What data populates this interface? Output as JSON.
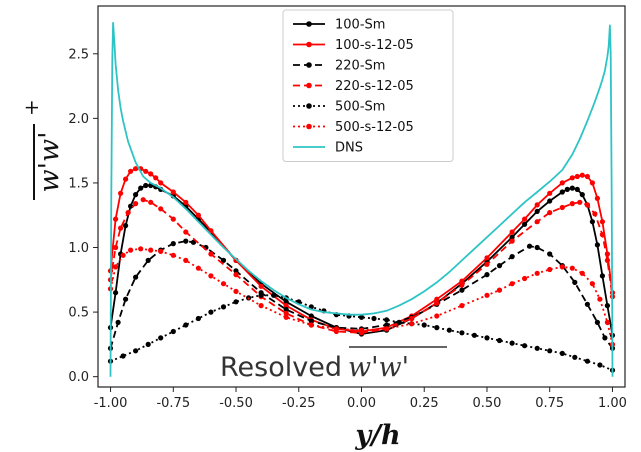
{
  "chart_data": {
    "type": "line",
    "title": "",
    "xlabel": "y/h",
    "ylabel": "w'w'",
    "ylabel_superscript": "+",
    "xlim": [
      -1.05,
      1.05
    ],
    "ylim": [
      -0.08,
      2.87
    ],
    "xticks": [
      "-1.00",
      "-0.75",
      "-0.50",
      "-0.25",
      "0.00",
      "0.25",
      "0.50",
      "0.75",
      "1.00"
    ],
    "yticks": [
      "0.0",
      "0.5",
      "1.0",
      "1.5",
      "2.0",
      "2.5"
    ],
    "grid": false,
    "legend_position": "upper-center",
    "annotation": {
      "text": "Resolved",
      "math": "w'w'"
    },
    "series": [
      {
        "name": "100-Sm",
        "color": "#000000",
        "dash": "solid",
        "marker": true,
        "x": [
          -1.0,
          -0.98,
          -0.96,
          -0.94,
          -0.92,
          -0.9,
          -0.88,
          -0.86,
          -0.84,
          -0.82,
          -0.8,
          -0.75,
          -0.7,
          -0.65,
          -0.6,
          -0.5,
          -0.4,
          -0.3,
          -0.2,
          -0.1,
          0.0,
          0.1,
          0.2,
          0.3,
          0.4,
          0.5,
          0.6,
          0.65,
          0.7,
          0.75,
          0.8,
          0.82,
          0.84,
          0.86,
          0.88,
          0.9,
          0.92,
          0.94,
          0.96,
          0.98,
          1.0
        ],
        "y": [
          0.38,
          0.65,
          0.95,
          1.17,
          1.32,
          1.41,
          1.46,
          1.48,
          1.48,
          1.47,
          1.45,
          1.4,
          1.32,
          1.22,
          1.12,
          0.9,
          0.72,
          0.58,
          0.47,
          0.38,
          0.33,
          0.36,
          0.45,
          0.57,
          0.72,
          0.89,
          1.08,
          1.18,
          1.28,
          1.36,
          1.43,
          1.45,
          1.46,
          1.45,
          1.41,
          1.33,
          1.2,
          1.02,
          0.78,
          0.55,
          0.32
        ]
      },
      {
        "name": "100-s-12-05",
        "color": "#ff0000",
        "dash": "solid",
        "marker": true,
        "x": [
          -1.0,
          -0.98,
          -0.96,
          -0.94,
          -0.92,
          -0.9,
          -0.88,
          -0.86,
          -0.84,
          -0.82,
          -0.8,
          -0.75,
          -0.7,
          -0.65,
          -0.6,
          -0.5,
          -0.4,
          -0.3,
          -0.2,
          -0.1,
          0.0,
          0.1,
          0.2,
          0.3,
          0.4,
          0.5,
          0.6,
          0.65,
          0.7,
          0.75,
          0.8,
          0.84,
          0.86,
          0.88,
          0.9,
          0.92,
          0.94,
          0.96,
          0.98,
          1.0
        ],
        "y": [
          0.82,
          1.22,
          1.42,
          1.53,
          1.59,
          1.61,
          1.61,
          1.59,
          1.57,
          1.54,
          1.5,
          1.43,
          1.35,
          1.25,
          1.13,
          0.9,
          0.7,
          0.55,
          0.44,
          0.37,
          0.35,
          0.38,
          0.47,
          0.6,
          0.74,
          0.92,
          1.12,
          1.22,
          1.33,
          1.42,
          1.5,
          1.54,
          1.55,
          1.56,
          1.55,
          1.5,
          1.38,
          1.2,
          0.95,
          0.65
        ]
      },
      {
        "name": "220-Sm",
        "color": "#000000",
        "dash": "dashed",
        "marker": true,
        "x": [
          -1.0,
          -0.97,
          -0.94,
          -0.9,
          -0.85,
          -0.8,
          -0.75,
          -0.7,
          -0.67,
          -0.62,
          -0.55,
          -0.5,
          -0.4,
          -0.3,
          -0.2,
          -0.1,
          0.0,
          0.1,
          0.2,
          0.3,
          0.4,
          0.5,
          0.55,
          0.6,
          0.67,
          0.7,
          0.75,
          0.8,
          0.85,
          0.9,
          0.94,
          0.97,
          1.0
        ],
        "y": [
          0.22,
          0.42,
          0.6,
          0.77,
          0.9,
          0.98,
          1.03,
          1.05,
          1.04,
          1.0,
          0.9,
          0.82,
          0.65,
          0.52,
          0.43,
          0.38,
          0.37,
          0.4,
          0.46,
          0.56,
          0.67,
          0.79,
          0.86,
          0.93,
          1.01,
          1.0,
          0.95,
          0.86,
          0.73,
          0.56,
          0.42,
          0.3,
          0.22
        ]
      },
      {
        "name": "220-s-12-05",
        "color": "#ff0000",
        "dash": "dashed",
        "marker": true,
        "x": [
          -1.0,
          -0.98,
          -0.96,
          -0.93,
          -0.9,
          -0.87,
          -0.84,
          -0.8,
          -0.75,
          -0.7,
          -0.6,
          -0.5,
          -0.4,
          -0.3,
          -0.2,
          -0.1,
          0.0,
          0.1,
          0.2,
          0.3,
          0.4,
          0.5,
          0.6,
          0.7,
          0.75,
          0.8,
          0.84,
          0.87,
          0.9,
          0.93,
          0.96,
          0.98,
          1.0
        ],
        "y": [
          0.75,
          1.0,
          1.15,
          1.27,
          1.34,
          1.37,
          1.35,
          1.3,
          1.22,
          1.12,
          0.95,
          0.79,
          0.62,
          0.49,
          0.4,
          0.35,
          0.34,
          0.37,
          0.45,
          0.57,
          0.71,
          0.87,
          1.05,
          1.2,
          1.27,
          1.31,
          1.34,
          1.35,
          1.33,
          1.26,
          1.1,
          0.9,
          0.62
        ]
      },
      {
        "name": "500-Sm",
        "color": "#000000",
        "dash": "dotted",
        "marker": true,
        "x": [
          -1.0,
          -0.95,
          -0.9,
          -0.85,
          -0.8,
          -0.75,
          -0.7,
          -0.65,
          -0.6,
          -0.55,
          -0.5,
          -0.45,
          -0.4,
          -0.35,
          -0.3,
          -0.25,
          -0.2,
          -0.15,
          -0.1,
          -0.05,
          0.0,
          0.05,
          0.1,
          0.15,
          0.2,
          0.25,
          0.3,
          0.35,
          0.4,
          0.45,
          0.5,
          0.55,
          0.6,
          0.65,
          0.7,
          0.75,
          0.8,
          0.85,
          0.9,
          0.95,
          1.0
        ],
        "y": [
          0.12,
          0.16,
          0.2,
          0.25,
          0.3,
          0.35,
          0.4,
          0.45,
          0.5,
          0.54,
          0.58,
          0.61,
          0.63,
          0.63,
          0.61,
          0.58,
          0.54,
          0.51,
          0.48,
          0.47,
          0.46,
          0.45,
          0.44,
          0.42,
          0.41,
          0.4,
          0.38,
          0.36,
          0.34,
          0.32,
          0.3,
          0.28,
          0.26,
          0.24,
          0.22,
          0.2,
          0.18,
          0.15,
          0.12,
          0.09,
          0.05
        ]
      },
      {
        "name": "500-s-12-05",
        "color": "#ff0000",
        "dash": "dotted",
        "marker": true,
        "x": [
          -1.0,
          -0.98,
          -0.95,
          -0.92,
          -0.88,
          -0.84,
          -0.8,
          -0.75,
          -0.7,
          -0.65,
          -0.6,
          -0.55,
          -0.5,
          -0.4,
          -0.3,
          -0.2,
          -0.1,
          0.0,
          0.1,
          0.2,
          0.3,
          0.4,
          0.5,
          0.55,
          0.6,
          0.65,
          0.7,
          0.75,
          0.8,
          0.84,
          0.88,
          0.92,
          0.95,
          0.98,
          1.0
        ],
        "y": [
          0.68,
          0.85,
          0.94,
          0.98,
          0.99,
          0.98,
          0.97,
          0.94,
          0.9,
          0.84,
          0.78,
          0.72,
          0.66,
          0.55,
          0.46,
          0.4,
          0.37,
          0.36,
          0.37,
          0.41,
          0.47,
          0.55,
          0.63,
          0.67,
          0.72,
          0.76,
          0.8,
          0.83,
          0.85,
          0.84,
          0.8,
          0.72,
          0.6,
          0.42,
          0.25
        ]
      },
      {
        "name": "DNS",
        "color": "#2ec4c6",
        "dash": "solid",
        "marker": false,
        "x": [
          -1.0,
          -0.997,
          -0.993,
          -0.99,
          -0.985,
          -0.98,
          -0.97,
          -0.96,
          -0.95,
          -0.93,
          -0.9,
          -0.87,
          -0.84,
          -0.8,
          -0.75,
          -0.7,
          -0.65,
          -0.6,
          -0.55,
          -0.5,
          -0.45,
          -0.4,
          -0.35,
          -0.3,
          -0.25,
          -0.2,
          -0.15,
          -0.1,
          -0.05,
          0.0,
          0.05,
          0.1,
          0.15,
          0.2,
          0.25,
          0.3,
          0.35,
          0.4,
          0.45,
          0.5,
          0.55,
          0.6,
          0.65,
          0.7,
          0.75,
          0.8,
          0.84,
          0.87,
          0.9,
          0.93,
          0.95,
          0.96,
          0.97,
          0.98,
          0.985,
          0.99,
          0.993,
          0.997,
          1.0
        ],
        "y": [
          0.0,
          1.4,
          2.45,
          2.74,
          2.6,
          2.42,
          2.22,
          2.08,
          1.98,
          1.82,
          1.66,
          1.55,
          1.5,
          1.46,
          1.39,
          1.3,
          1.2,
          1.1,
          1.0,
          0.91,
          0.82,
          0.74,
          0.67,
          0.61,
          0.56,
          0.52,
          0.5,
          0.49,
          0.48,
          0.48,
          0.49,
          0.51,
          0.55,
          0.6,
          0.66,
          0.73,
          0.81,
          0.9,
          0.99,
          1.08,
          1.17,
          1.26,
          1.35,
          1.43,
          1.51,
          1.6,
          1.72,
          1.84,
          1.98,
          2.13,
          2.24,
          2.3,
          2.37,
          2.48,
          2.56,
          2.72,
          2.5,
          1.4,
          0.0
        ]
      }
    ]
  }
}
